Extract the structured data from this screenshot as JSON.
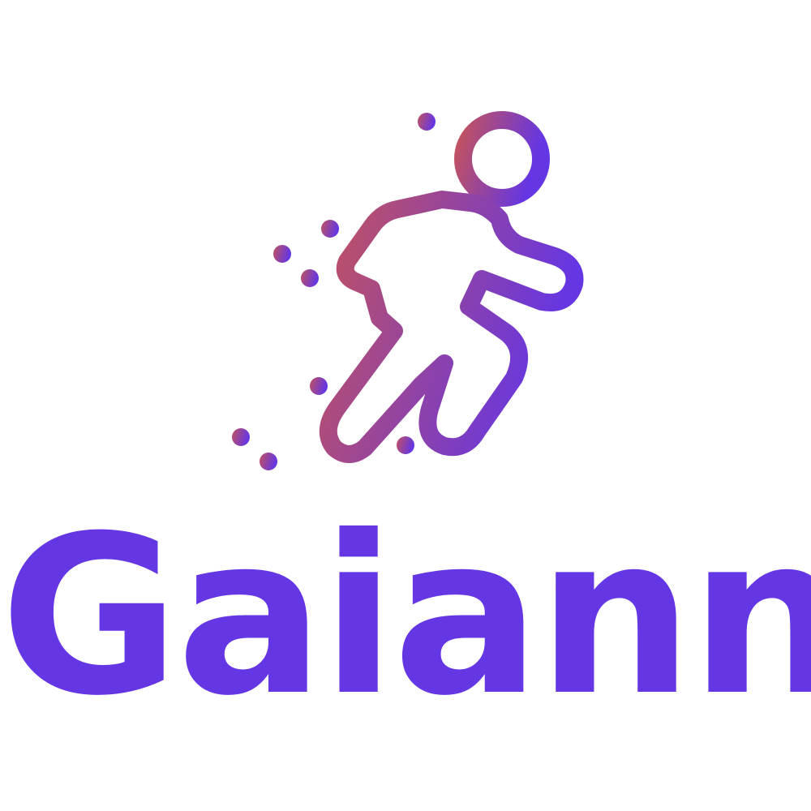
{
  "brand": {
    "name": "Gaiann",
    "text_color": "#6536E3",
    "gradient_start": "#C2525F",
    "gradient_end": "#6536E3"
  },
  "logo": {
    "icon": "running-person-icon"
  }
}
